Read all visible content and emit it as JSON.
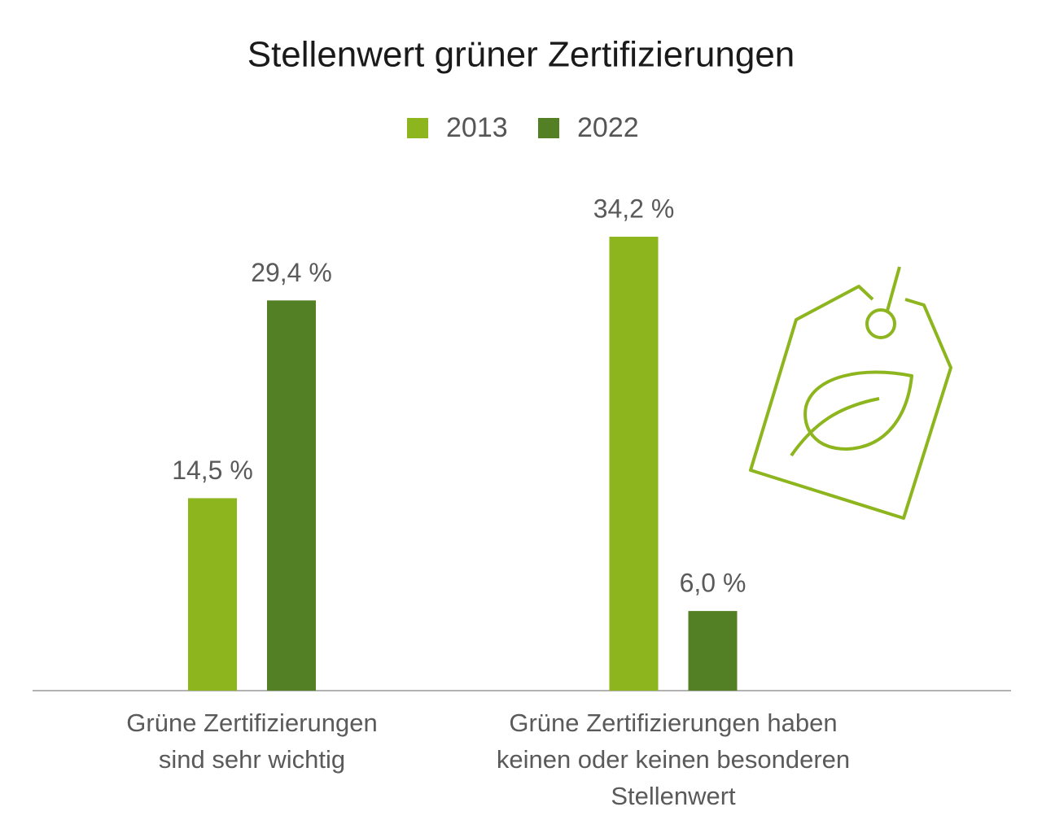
{
  "chart_data": {
    "type": "bar",
    "title": "Stellenwert grüner Zertifizierungen",
    "categories": [
      "Grüne Zertifizierungen\nsind sehr wichtig",
      "Grüne Zertifizierungen haben\nkeinen oder keinen besonderen\nStellenwert"
    ],
    "series": [
      {
        "name": "2013",
        "color": "#8db51e",
        "values": [
          14.5,
          34.2
        ],
        "value_labels": [
          "14,5 %",
          "34,2 %"
        ]
      },
      {
        "name": "2022",
        "color": "#548025",
        "values": [
          29.4,
          6.0
        ],
        "value_labels": [
          "29,4 %",
          "6,0 %"
        ]
      }
    ]
  }
}
